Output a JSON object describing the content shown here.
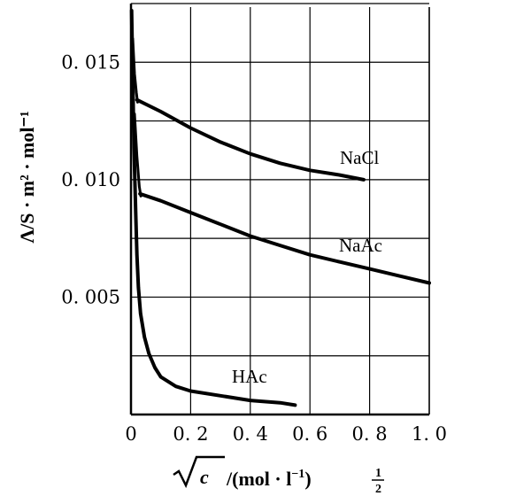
{
  "chart_data": {
    "type": "line",
    "xlabel": "√c /(mol · l⁻¹)½",
    "xlabel_parts": {
      "radicand": "c",
      "rest": "/(mol · l",
      "sup": "−1",
      "close": ")",
      "frac_num": "1",
      "frac_den": "2"
    },
    "ylabel": "Λ/S · m² · mol⁻¹",
    "xlim": [
      0,
      1.0
    ],
    "ylim": [
      0,
      0.0175
    ],
    "grid": true,
    "x_ticks": [
      {
        "v": 0,
        "label": "0"
      },
      {
        "v": 0.2,
        "label": "0. 2"
      },
      {
        "v": 0.4,
        "label": "0. 4"
      },
      {
        "v": 0.6,
        "label": "0. 6"
      },
      {
        "v": 0.8,
        "label": "0. 8"
      },
      {
        "v": 1.0,
        "label": "1. 0"
      }
    ],
    "y_ticks": [
      {
        "v": 0.005,
        "label": "0. 005"
      },
      {
        "v": 0.01,
        "label": "0. 010"
      },
      {
        "v": 0.015,
        "label": "0. 015"
      }
    ],
    "series": [
      {
        "name": "NaCl",
        "points": [
          [
            0.02,
            0.0134
          ],
          [
            0.1,
            0.0129
          ],
          [
            0.2,
            0.0122
          ],
          [
            0.3,
            0.0116
          ],
          [
            0.4,
            0.0111
          ],
          [
            0.5,
            0.0107
          ],
          [
            0.6,
            0.0104
          ],
          [
            0.7,
            0.0102
          ],
          [
            0.78,
            0.01
          ]
        ]
      },
      {
        "name": "NaAc",
        "points": [
          [
            0.03,
            0.0094
          ],
          [
            0.1,
            0.0091
          ],
          [
            0.2,
            0.0086
          ],
          [
            0.3,
            0.0081
          ],
          [
            0.4,
            0.0076
          ],
          [
            0.5,
            0.0072
          ],
          [
            0.6,
            0.0068
          ],
          [
            0.7,
            0.0065
          ],
          [
            0.8,
            0.0062
          ],
          [
            0.9,
            0.0059
          ],
          [
            1.0,
            0.0056
          ]
        ]
      },
      {
        "name": "HAc",
        "points": [
          [
            0.002,
            0.0172
          ],
          [
            0.005,
            0.015
          ],
          [
            0.008,
            0.0128
          ],
          [
            0.012,
            0.0105
          ],
          [
            0.016,
            0.0085
          ],
          [
            0.02,
            0.0068
          ],
          [
            0.025,
            0.0054
          ],
          [
            0.032,
            0.0043
          ],
          [
            0.045,
            0.0033
          ],
          [
            0.06,
            0.0026
          ],
          [
            0.08,
            0.002
          ],
          [
            0.1,
            0.0016
          ],
          [
            0.15,
            0.0012
          ],
          [
            0.2,
            0.001
          ],
          [
            0.3,
            0.0008
          ],
          [
            0.4,
            0.0006
          ],
          [
            0.5,
            0.0005
          ],
          [
            0.55,
            0.0004
          ]
        ]
      }
    ],
    "extra_branches": [
      {
        "of": "NaCl",
        "points": [
          [
            0.006,
            0.016
          ],
          [
            0.012,
            0.0145
          ],
          [
            0.018,
            0.0137
          ],
          [
            0.022,
            0.0133
          ]
        ]
      },
      {
        "of": "NaAc",
        "points": [
          [
            0.012,
            0.0128
          ],
          [
            0.02,
            0.011
          ],
          [
            0.028,
            0.0097
          ],
          [
            0.033,
            0.0093
          ]
        ]
      }
    ]
  }
}
